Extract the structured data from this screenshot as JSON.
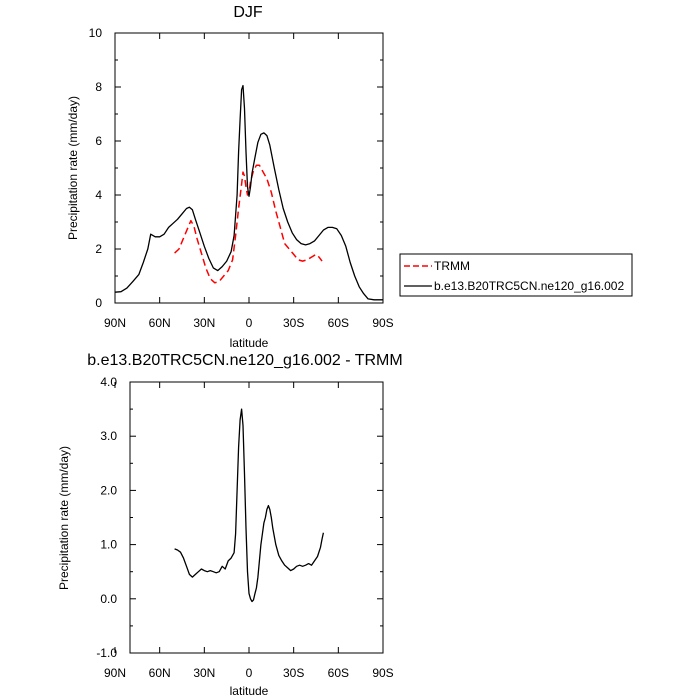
{
  "chart_data": [
    {
      "type": "line",
      "title": "DJF",
      "xlabel": "latitude",
      "ylabel": "Precipitation rate (mm/day)",
      "xlim": [
        90,
        -90
      ],
      "ylim": [
        0,
        10
      ],
      "xticks": [
        {
          "value": 90,
          "label": "90N"
        },
        {
          "value": 60,
          "label": "60N"
        },
        {
          "value": 30,
          "label": "30N"
        },
        {
          "value": 0,
          "label": "0"
        },
        {
          "value": -30,
          "label": "30S"
        },
        {
          "value": -60,
          "label": "60S"
        },
        {
          "value": -90,
          "label": "90S"
        }
      ],
      "yticks": [
        {
          "value": 0,
          "label": "0"
        },
        {
          "value": 2,
          "label": "2"
        },
        {
          "value": 4,
          "label": "4"
        },
        {
          "value": 6,
          "label": "6"
        },
        {
          "value": 8,
          "label": "8"
        },
        {
          "value": 10,
          "label": "10"
        }
      ],
      "series": [
        {
          "name": "TRMM",
          "color": "#ff0000",
          "dash": true,
          "points": [
            [
              50,
              1.85
            ],
            [
              47,
              2.0
            ],
            [
              44,
              2.4
            ],
            [
              41,
              2.8
            ],
            [
              39,
              3.05
            ],
            [
              37,
              2.85
            ],
            [
              35,
              2.4
            ],
            [
              32,
              1.85
            ],
            [
              29,
              1.3
            ],
            [
              26,
              0.9
            ],
            [
              23,
              0.75
            ],
            [
              20,
              0.8
            ],
            [
              17,
              1.0
            ],
            [
              14,
              1.2
            ],
            [
              11,
              1.6
            ],
            [
              9,
              2.5
            ],
            [
              7,
              3.5
            ],
            [
              5,
              4.4
            ],
            [
              4,
              4.85
            ],
            [
              3,
              4.7
            ],
            [
              2,
              4.3
            ],
            [
              1,
              4.0
            ],
            [
              0,
              4.1
            ],
            [
              -1,
              4.5
            ],
            [
              -3,
              4.9
            ],
            [
              -5,
              5.1
            ],
            [
              -7,
              5.1
            ],
            [
              -9,
              4.9
            ],
            [
              -12,
              4.6
            ],
            [
              -15,
              4.1
            ],
            [
              -18,
              3.4
            ],
            [
              -21,
              2.8
            ],
            [
              -24,
              2.2
            ],
            [
              -27,
              2.0
            ],
            [
              -30,
              1.8
            ],
            [
              -33,
              1.6
            ],
            [
              -36,
              1.55
            ],
            [
              -39,
              1.6
            ],
            [
              -42,
              1.7
            ],
            [
              -45,
              1.8
            ],
            [
              -47,
              1.7
            ],
            [
              -49,
              1.55
            ]
          ]
        },
        {
          "name": "b.e13.B20TRC5CN.ne120_g16.002",
          "color": "#000000",
          "dash": false,
          "points": [
            [
              90,
              0.4
            ],
            [
              86,
              0.42
            ],
            [
              82,
              0.55
            ],
            [
              78,
              0.8
            ],
            [
              74,
              1.05
            ],
            [
              71,
              1.5
            ],
            [
              68,
              2.0
            ],
            [
              66,
              2.55
            ],
            [
              63,
              2.45
            ],
            [
              60,
              2.45
            ],
            [
              57,
              2.55
            ],
            [
              54,
              2.8
            ],
            [
              51,
              2.95
            ],
            [
              48,
              3.1
            ],
            [
              45,
              3.3
            ],
            [
              42,
              3.5
            ],
            [
              40,
              3.55
            ],
            [
              38,
              3.45
            ],
            [
              36,
              3.1
            ],
            [
              33,
              2.6
            ],
            [
              30,
              2.1
            ],
            [
              27,
              1.65
            ],
            [
              24,
              1.3
            ],
            [
              21,
              1.2
            ],
            [
              18,
              1.35
            ],
            [
              15,
              1.55
            ],
            [
              12,
              1.9
            ],
            [
              10,
              2.5
            ],
            [
              8,
              4.0
            ],
            [
              7,
              5.6
            ],
            [
              6,
              6.8
            ],
            [
              5,
              7.9
            ],
            [
              4,
              8.05
            ],
            [
              3,
              7.2
            ],
            [
              2,
              5.6
            ],
            [
              1,
              4.3
            ],
            [
              0,
              3.95
            ],
            [
              -1,
              4.3
            ],
            [
              -2,
              4.8
            ],
            [
              -4,
              5.4
            ],
            [
              -6,
              5.95
            ],
            [
              -8,
              6.25
            ],
            [
              -10,
              6.3
            ],
            [
              -12,
              6.2
            ],
            [
              -14,
              5.85
            ],
            [
              -17,
              5.0
            ],
            [
              -20,
              4.2
            ],
            [
              -23,
              3.5
            ],
            [
              -26,
              3.0
            ],
            [
              -29,
              2.6
            ],
            [
              -32,
              2.35
            ],
            [
              -35,
              2.2
            ],
            [
              -38,
              2.15
            ],
            [
              -41,
              2.2
            ],
            [
              -44,
              2.3
            ],
            [
              -47,
              2.5
            ],
            [
              -50,
              2.7
            ],
            [
              -53,
              2.8
            ],
            [
              -56,
              2.8
            ],
            [
              -59,
              2.75
            ],
            [
              -62,
              2.5
            ],
            [
              -65,
              2.1
            ],
            [
              -68,
              1.5
            ],
            [
              -71,
              1.0
            ],
            [
              -74,
              0.6
            ],
            [
              -77,
              0.35
            ],
            [
              -80,
              0.15
            ],
            [
              -84,
              0.12
            ],
            [
              -88,
              0.12
            ],
            [
              -90,
              0.12
            ]
          ]
        }
      ],
      "legend": {
        "placement": "right",
        "entries": [
          "TRMM",
          "b.e13.B20TRC5CN.ne120_g16.002"
        ]
      }
    },
    {
      "type": "line",
      "title": "b.e13.B20TRC5CN.ne120_g16.002 - TRMM",
      "xlabel": "latitude",
      "ylabel": "Precipitation rate (mm/day)",
      "xlim": [
        90,
        -90
      ],
      "ylim": [
        -1,
        4
      ],
      "xticks": [
        {
          "value": 90,
          "label": "90N"
        },
        {
          "value": 60,
          "label": "60N"
        },
        {
          "value": 30,
          "label": "30N"
        },
        {
          "value": 0,
          "label": "0"
        },
        {
          "value": -30,
          "label": "30S"
        },
        {
          "value": -60,
          "label": "60S"
        },
        {
          "value": -90,
          "label": "90S"
        }
      ],
      "yticks": [
        {
          "value": -1,
          "label": "-1.0"
        },
        {
          "value": 0,
          "label": "0.0"
        },
        {
          "value": 1,
          "label": "1.0"
        },
        {
          "value": 2,
          "label": "2.0"
        },
        {
          "value": 3,
          "label": "3.0"
        },
        {
          "value": 4,
          "label": "4.0"
        }
      ],
      "series": [
        {
          "name": "b.e13.B20TRC5CN.ne120_g16.002 - TRMM",
          "color": "#000000",
          "dash": false,
          "points": [
            [
              50,
              0.92
            ],
            [
              48,
              0.9
            ],
            [
              46,
              0.86
            ],
            [
              44,
              0.75
            ],
            [
              42,
              0.6
            ],
            [
              40,
              0.45
            ],
            [
              38,
              0.4
            ],
            [
              36,
              0.45
            ],
            [
              34,
              0.5
            ],
            [
              32,
              0.55
            ],
            [
              30,
              0.52
            ],
            [
              28,
              0.5
            ],
            [
              26,
              0.52
            ],
            [
              24,
              0.5
            ],
            [
              22,
              0.48
            ],
            [
              20,
              0.5
            ],
            [
              18,
              0.6
            ],
            [
              16,
              0.55
            ],
            [
              14,
              0.7
            ],
            [
              12,
              0.75
            ],
            [
              10,
              0.85
            ],
            [
              9,
              1.2
            ],
            [
              8,
              2.0
            ],
            [
              7,
              2.8
            ],
            [
              6,
              3.3
            ],
            [
              5,
              3.5
            ],
            [
              4,
              3.2
            ],
            [
              3,
              2.3
            ],
            [
              2,
              1.3
            ],
            [
              1,
              0.5
            ],
            [
              0,
              0.1
            ],
            [
              -1,
              0.0
            ],
            [
              -2,
              -0.05
            ],
            [
              -3,
              -0.02
            ],
            [
              -4,
              0.1
            ],
            [
              -5,
              0.2
            ],
            [
              -6,
              0.4
            ],
            [
              -7,
              0.7
            ],
            [
              -8,
              1.0
            ],
            [
              -9,
              1.2
            ],
            [
              -10,
              1.4
            ],
            [
              -11,
              1.5
            ],
            [
              -12,
              1.65
            ],
            [
              -13,
              1.72
            ],
            [
              -14,
              1.65
            ],
            [
              -15,
              1.5
            ],
            [
              -16,
              1.3
            ],
            [
              -18,
              1.0
            ],
            [
              -20,
              0.8
            ],
            [
              -22,
              0.7
            ],
            [
              -24,
              0.62
            ],
            [
              -26,
              0.57
            ],
            [
              -28,
              0.52
            ],
            [
              -30,
              0.55
            ],
            [
              -32,
              0.6
            ],
            [
              -34,
              0.62
            ],
            [
              -36,
              0.6
            ],
            [
              -38,
              0.62
            ],
            [
              -40,
              0.65
            ],
            [
              -42,
              0.62
            ],
            [
              -44,
              0.7
            ],
            [
              -46,
              0.78
            ],
            [
              -48,
              0.95
            ],
            [
              -49,
              1.1
            ],
            [
              -50,
              1.22
            ]
          ]
        }
      ]
    }
  ]
}
